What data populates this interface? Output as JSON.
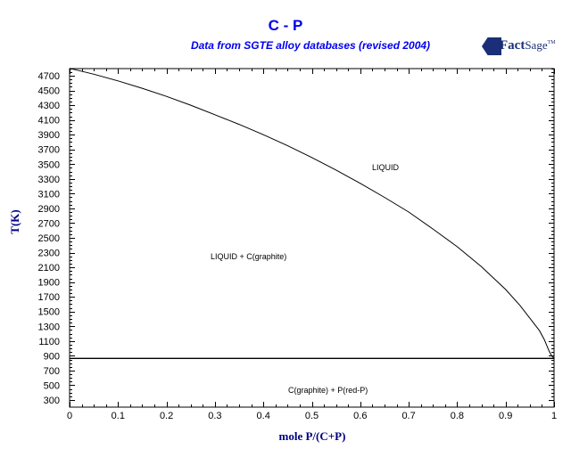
{
  "header": {
    "title": "C - P",
    "subtitle": "Data from SGTE alloy databases (revised 2004)",
    "logo_text_bold": "Fact",
    "logo_text_regular": "Sage",
    "logo_sup": "TM"
  },
  "axes": {
    "xlabel": "mole P/(C+P)",
    "ylabel": "T(K)"
  },
  "regions": {
    "liquid": "LIQUID",
    "liquid_graphite": "LIQUID + C(graphite)",
    "solid": "C(graphite) + P(red-P)"
  },
  "colors": {
    "title": "#0000ee",
    "axis_label": "#000080",
    "logo": "#1a2f78",
    "lines": "#000000"
  },
  "chart_data": {
    "type": "line",
    "title": "C - P",
    "subtitle": "Data from SGTE alloy databases (revised 2004)",
    "xlabel": "mole P/(C+P)",
    "ylabel": "T(K)",
    "xlim": [
      0,
      1
    ],
    "ylim": [
      300,
      4800
    ],
    "x_ticks": [
      "0",
      "0.1",
      "0.2",
      "0.3",
      "0.4",
      "0.5",
      "0.6",
      "0.7",
      "0.8",
      "0.9",
      "1"
    ],
    "y_ticks": [
      "300",
      "500",
      "700",
      "900",
      "1100",
      "1300",
      "1500",
      "1700",
      "1900",
      "2100",
      "2300",
      "2500",
      "2700",
      "2900",
      "3100",
      "3300",
      "3500",
      "3700",
      "3900",
      "4100",
      "4300",
      "4500",
      "4700"
    ],
    "grid": false,
    "legend": "none",
    "series": [
      {
        "name": "liquidus (graphite)",
        "x": [
          0.0,
          0.05,
          0.1,
          0.15,
          0.2,
          0.25,
          0.3,
          0.35,
          0.4,
          0.45,
          0.5,
          0.55,
          0.6,
          0.65,
          0.7,
          0.75,
          0.8,
          0.85,
          0.9,
          0.93,
          0.95,
          0.97,
          0.98,
          0.99,
          0.995,
          1.0
        ],
        "y": [
          4800,
          4720,
          4630,
          4530,
          4420,
          4300,
          4170,
          4040,
          3900,
          3750,
          3590,
          3420,
          3240,
          3050,
          2850,
          2620,
          2380,
          2110,
          1800,
          1580,
          1410,
          1240,
          1120,
          960,
          900,
          865
        ]
      },
      {
        "name": "eutectic isotherm",
        "x": [
          0.0,
          1.0
        ],
        "y": [
          865,
          865
        ]
      }
    ],
    "annotations": [
      {
        "text": "LIQUID",
        "x": 0.65,
        "y": 3480
      },
      {
        "text": "LIQUID + C(graphite)",
        "x": 0.37,
        "y": 2290
      },
      {
        "text": "C(graphite) + P(red-P)",
        "x": 0.54,
        "y": 500
      }
    ]
  }
}
